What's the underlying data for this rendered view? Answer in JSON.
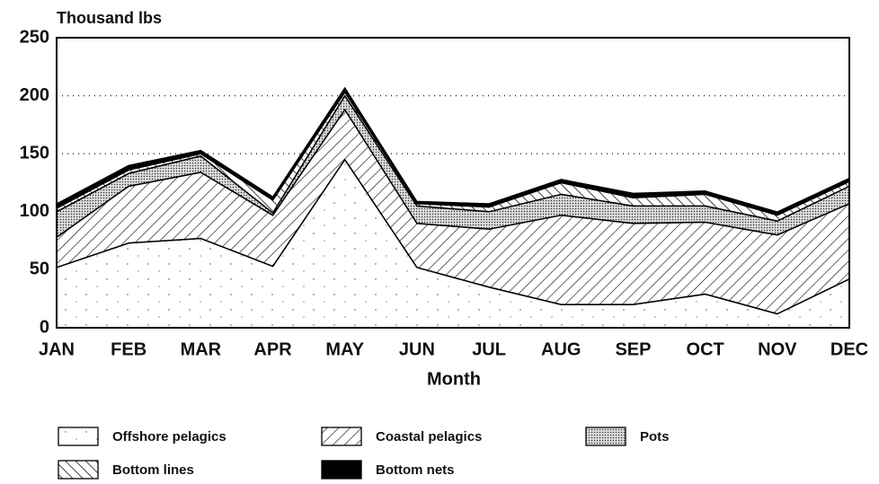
{
  "chart_data": {
    "type": "stacked-area",
    "title": "Thousand lbs",
    "x_label": "Month",
    "categories": [
      "JAN",
      "FEB",
      "MAR",
      "APR",
      "MAY",
      "JUN",
      "JUL",
      "AUG",
      "SEP",
      "OCT",
      "NOV",
      "DEC"
    ],
    "ylim": [
      0,
      250
    ],
    "yticks": [
      0,
      50,
      100,
      150,
      200,
      250
    ],
    "grid": true,
    "series": [
      {
        "name": "Offshore pelagics",
        "color": "#ffffff",
        "pattern": "sparse-dots",
        "values": [
          52,
          73,
          77,
          53,
          145,
          52,
          35,
          20,
          20,
          29,
          12,
          42
        ]
      },
      {
        "name": "Coastal pelagics",
        "color": "#ffffff",
        "pattern": "forward-hatch",
        "values": [
          26,
          49,
          57,
          44,
          43,
          38,
          50,
          77,
          70,
          62,
          68,
          65
        ]
      },
      {
        "name": "Pots",
        "color": "#ffffff",
        "pattern": "dense-dots",
        "values": [
          22,
          11,
          14,
          2,
          12,
          15,
          15,
          18,
          15,
          14,
          12,
          15
        ]
      },
      {
        "name": "Bottom lines",
        "color": "#ffffff",
        "pattern": "back-hatch",
        "values": [
          3,
          3,
          2,
          11,
          3,
          2,
          4,
          10,
          7,
          10,
          5,
          4
        ]
      },
      {
        "name": "Bottom nets",
        "color": "#000000",
        "pattern": "solid",
        "values": [
          4,
          4,
          3,
          3,
          4,
          2,
          3,
          3,
          4,
          3,
          3,
          3
        ]
      }
    ]
  }
}
